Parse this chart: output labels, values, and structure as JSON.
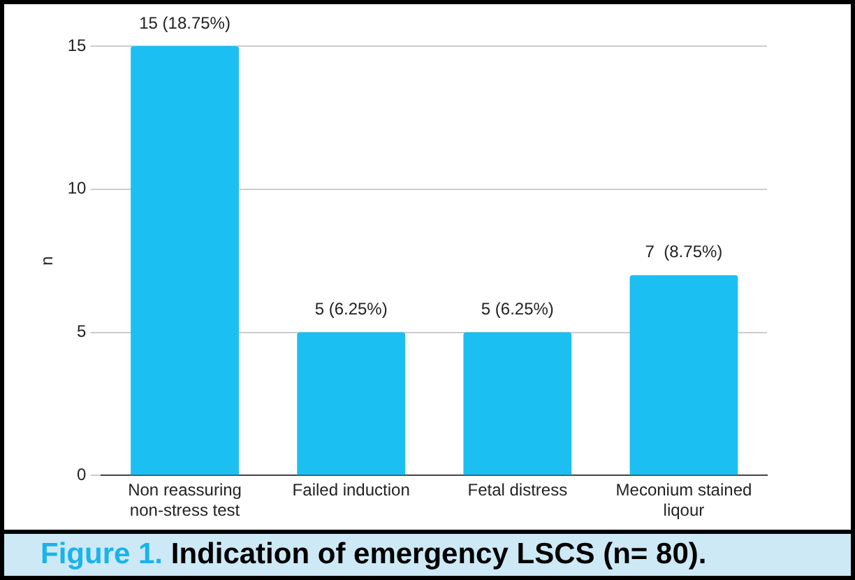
{
  "chart_data": {
    "type": "bar",
    "title": "Figure 1. Indication of emergency LSCS (n= 80).",
    "ylabel": "n",
    "categories": [
      [
        "Non reassuring",
        "non-stress test"
      ],
      "Failed induction",
      "Fetal distress",
      [
        "Meconium stained",
        "liqour"
      ]
    ],
    "values": [
      15,
      5,
      5,
      7
    ],
    "color": "#1bbff2",
    "value_labels": [
      "15 (18.75%)",
      "5 (6.25%)",
      "5 (6.25%)",
      "7  (8.75%)"
    ],
    "ylim": [
      0,
      15
    ],
    "yticks": [
      0,
      5,
      10,
      15
    ],
    "grid": "y",
    "legend": false
  }
}
